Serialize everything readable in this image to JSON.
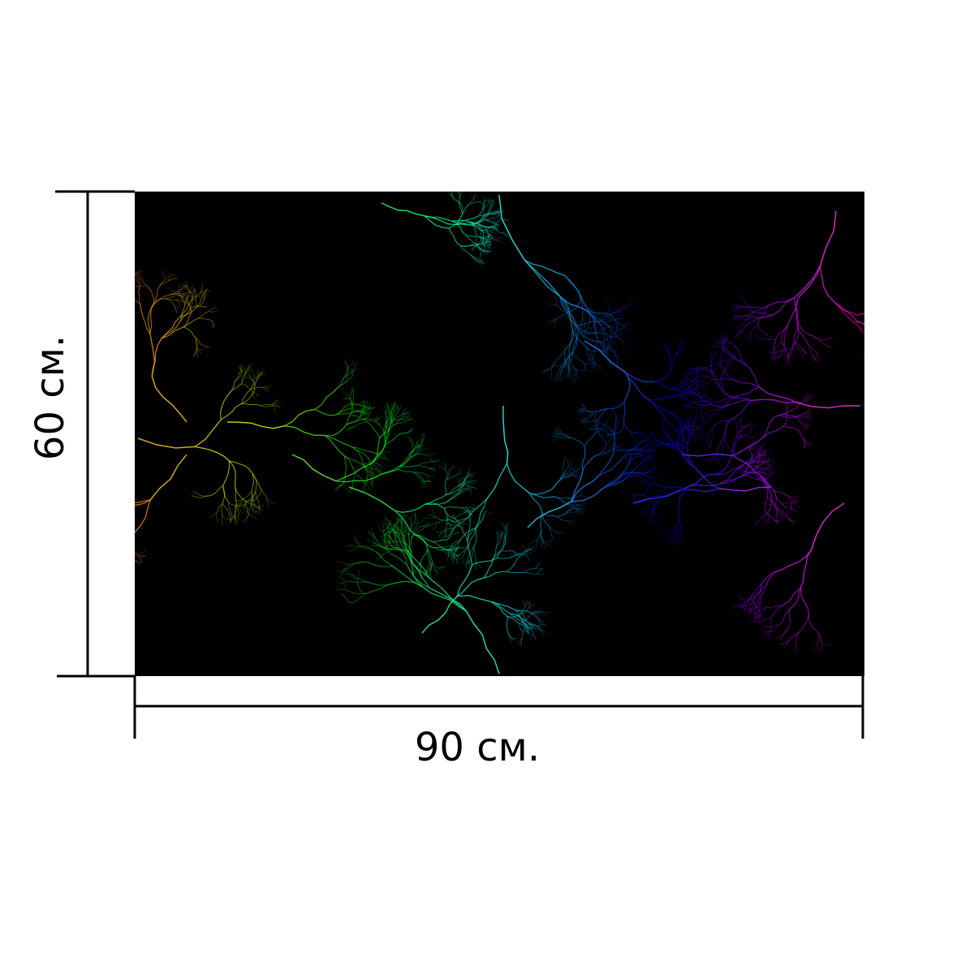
{
  "dimensions": {
    "height_label": "60 см.",
    "width_label": "90 см."
  }
}
